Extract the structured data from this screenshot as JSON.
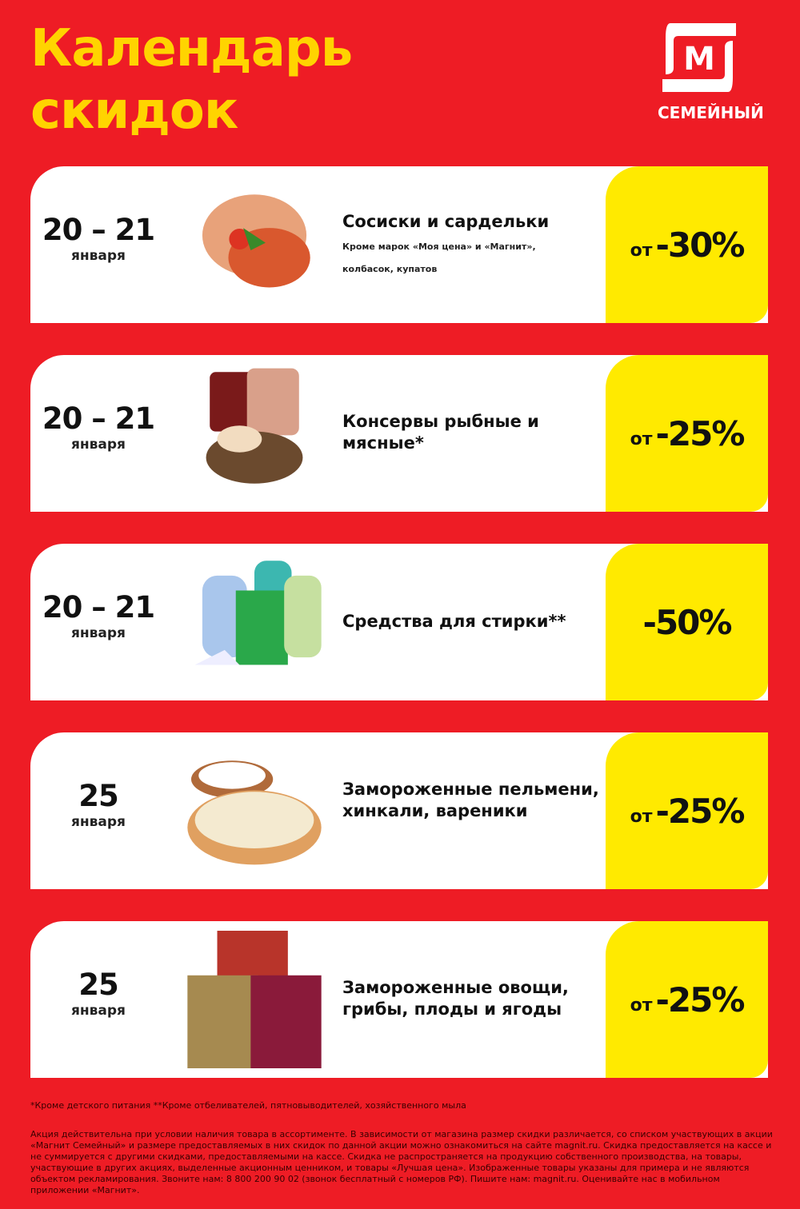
{
  "header": {
    "title_line1": "Календарь",
    "title_line2": "скидок",
    "logo_text": "СЕМЕЙНЫЙ",
    "logo_letter": "М"
  },
  "colors": {
    "background": "#ee1c25",
    "title": "#ffd400",
    "discount_bg": "#ffea00"
  },
  "items": [
    {
      "date": "20 – 21",
      "month": "января",
      "title": "Сосиски и сардельки",
      "subtitle1": "Кроме марок «Моя цена» и «Магнит»,",
      "subtitle2": "колбасок, купатов",
      "prefix": "от",
      "discount": "-30%",
      "image": "sausages-image"
    },
    {
      "date": "20 – 21",
      "month": "января",
      "title": "Консервы рыбные и мясные*",
      "prefix": "от",
      "discount": "-25%",
      "image": "canned-food-image"
    },
    {
      "date": "20 – 21",
      "month": "января",
      "title": "Средства для стирки**",
      "prefix": "",
      "discount": "-50%",
      "image": "detergent-image"
    },
    {
      "date": "25",
      "month": "января",
      "title": "Замороженные пельмени, хинкали, вареники",
      "prefix": "от",
      "discount": "-25%",
      "image": "dumplings-image"
    },
    {
      "date": "25",
      "month": "января",
      "title": "Замороженные овощи, грибы, плоды и ягоды",
      "prefix": "от",
      "discount": "-25%",
      "image": "frozen-vegetables-image"
    }
  ],
  "footer": {
    "note": "*Кроме детского питания **Кроме отбеливателей, пятновыводителей, хозяйственного мыла",
    "legal": "Акция действительна при условии наличия товара в ассортименте. В зависимости от магазина размер скидки различается, со списком участвующих в акции «Магнит Семейный» и размере предоставляемых в них скидок по данной акции можно ознакомиться на сайте magnit.ru. Скидка предоставляется на кассе и не суммируется с другими скидками, предоставляемыми на кассе. Скидка не распространяется на продукцию собственного производства, на товары, участвующие в других акциях, выделенные акционным ценником, и товары «Лучшая цена». Изображенные товары указаны для примера и не являются объектом рекламирования. Звоните нам: 8 800 200 90 02 (звонок бесплатный с номеров РФ). Пишите нам: magnit.ru. Оценивайте нас в мобильном приложении «Магнит»."
  }
}
